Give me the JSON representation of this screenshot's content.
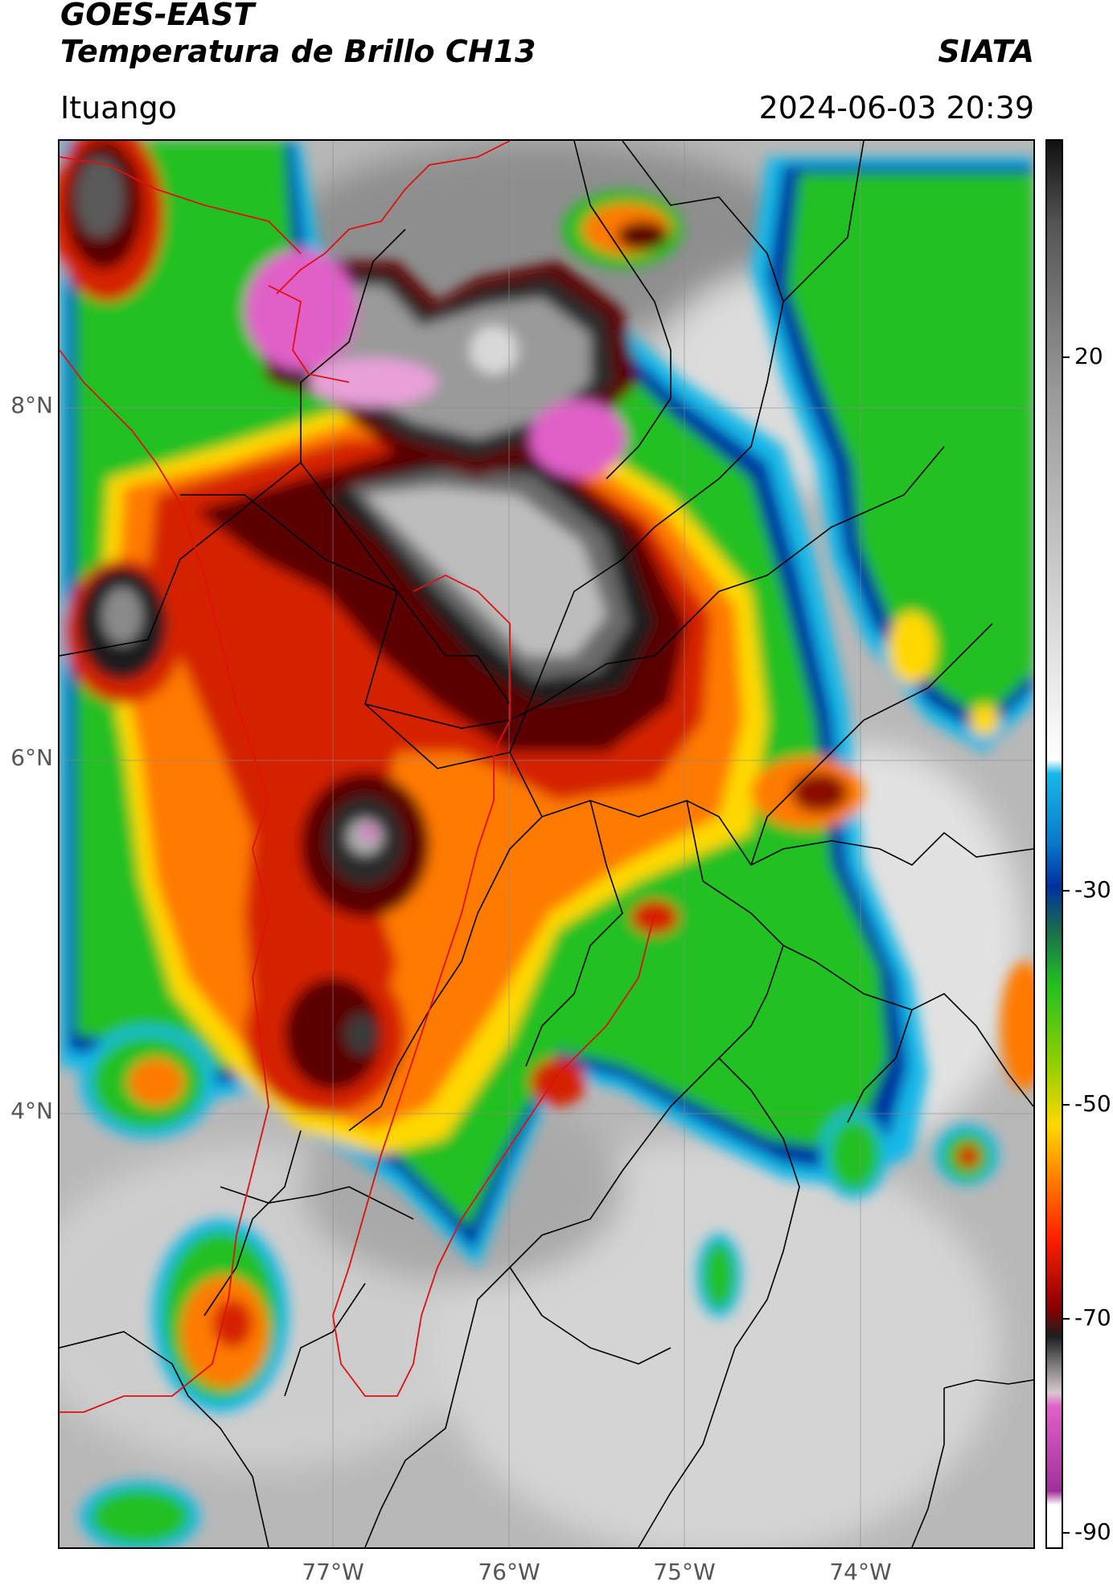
{
  "header": {
    "satellite": "GOES-EAST",
    "product": "Temperatura de Brillo CH13",
    "org": "SIATA",
    "region": "Ituango",
    "timestamp": "2024-06-03 20:39"
  },
  "axes": {
    "lat_ticks": [
      "8°N",
      "6°N",
      "4°N"
    ],
    "lon_ticks": [
      "77°W",
      "76°W",
      "75°W",
      "74°W"
    ]
  },
  "colorbar": {
    "ticks": [
      "20",
      "-30",
      "-50",
      "-70",
      "-90"
    ],
    "range": [
      -90,
      45
    ]
  },
  "chart_data": {
    "type": "heatmap",
    "title": "Temperatura de Brillo CH13",
    "lat_range": [
      1.7,
      9.6
    ],
    "lon_range": [
      -78.55,
      -72.85
    ],
    "lat_ticks": [
      8,
      6,
      4
    ],
    "lon_ticks": [
      -77,
      -76,
      -75,
      -74
    ],
    "colorbar_ticks": [
      20,
      -30,
      -50,
      -70,
      -90
    ],
    "grid": true
  },
  "colors": {
    "cold_magenta": "#e060c8",
    "deep_red": "#d42000",
    "orange": "#ff7a00",
    "yellow": "#ffd800",
    "green": "#22c020",
    "blue": "#0030a0",
    "cyan": "#18b8e8",
    "border_red": "#e01010"
  }
}
